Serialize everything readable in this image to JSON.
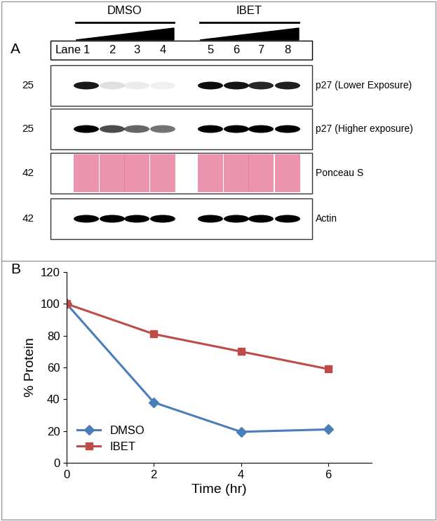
{
  "panel_a": {
    "label": "A",
    "lane_header": "Lane",
    "lanes": [
      1,
      2,
      3,
      4,
      5,
      6,
      7,
      8
    ],
    "groups": [
      {
        "name": "DMSO",
        "lanes": [
          1,
          2,
          3,
          4
        ]
      },
      {
        "name": "IBET",
        "lanes": [
          5,
          6,
          7,
          8
        ]
      }
    ],
    "rows": [
      {
        "label": "p27 (Lower Exposure)",
        "mw": 25,
        "color": "#000000",
        "band_intensity": [
          0.9,
          0.12,
          0.08,
          0.06,
          0.95,
          0.92,
          0.85,
          0.88
        ]
      },
      {
        "label": "p27 (Higher exposure)",
        "mw": 25,
        "color": "#000000",
        "band_intensity": [
          1.0,
          0.7,
          0.6,
          0.55,
          1.0,
          1.0,
          1.0,
          1.0
        ]
      },
      {
        "label": "Ponceau S",
        "mw": 42,
        "color": "#e8789a",
        "band_intensity": [
          0.8,
          0.8,
          0.8,
          0.8,
          0.8,
          0.8,
          0.8,
          0.8
        ]
      },
      {
        "label": "Actin",
        "mw": 42,
        "color": "#000000",
        "band_intensity": [
          1.0,
          1.0,
          1.0,
          1.0,
          1.0,
          1.0,
          1.0,
          1.0
        ]
      }
    ]
  },
  "panel_b": {
    "label": "B"
  },
  "chart_data": {
    "type": "line",
    "x": [
      0,
      2,
      4,
      6
    ],
    "series": [
      {
        "name": "DMSO",
        "color": "#4a7ebb",
        "marker": "diamond",
        "values": [
          100,
          38,
          19.5,
          21
        ]
      },
      {
        "name": "IBET",
        "color": "#be4b48",
        "marker": "square",
        "values": [
          100,
          81,
          70,
          59
        ]
      }
    ],
    "x_label": "Time (hr)",
    "y_label": "% Protein",
    "xlim": [
      0,
      7
    ],
    "xticks": [
      0,
      2,
      4,
      6
    ],
    "ylim": [
      0,
      120
    ],
    "yticks": [
      0,
      20,
      40,
      60,
      80,
      100,
      120
    ],
    "grid": false,
    "legend": "lower left"
  }
}
